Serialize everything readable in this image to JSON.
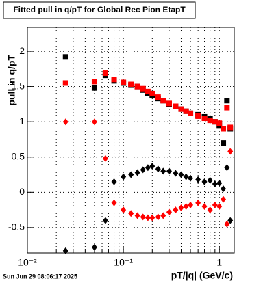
{
  "chart_data": {
    "type": "scatter",
    "title": "Fitted pull in q/pT for Global Rec Pion EtapT",
    "xlabel": "pT/|q| (GeV/c)",
    "ylabel": "pull in q/pT",
    "footer": "Sun Jun 29 08:06:17 2025",
    "xlog": true,
    "grid": true,
    "xlim": [
      0.01,
      1.43
    ],
    "ylim": [
      -0.86,
      2.34
    ],
    "xticks": [
      {
        "value": 0.01,
        "label": "10⁻²"
      },
      {
        "value": 0.1,
        "label": "10⁻¹"
      },
      1
    ],
    "yticks": [
      -0.5,
      0,
      0.5,
      1,
      1.5,
      2
    ],
    "x": [
      0.025,
      0.05,
      0.065,
      0.08,
      0.1,
      0.12,
      0.14,
      0.16,
      0.18,
      0.2,
      0.23,
      0.26,
      0.3,
      0.35,
      0.4,
      0.45,
      0.5,
      0.6,
      0.7,
      0.8,
      0.9,
      1.0,
      1.1,
      1.2,
      1.3
    ],
    "series": [
      {
        "color": "#000000",
        "marker": "square",
        "values": [
          1.92,
          1.48,
          1.66,
          1.58,
          1.55,
          1.52,
          1.5,
          1.45,
          1.4,
          1.37,
          1.33,
          1.3,
          1.25,
          1.22,
          1.18,
          1.15,
          1.12,
          1.1,
          1.07,
          1.05,
          1.0,
          0.95,
          0.7,
          1.3,
          0.9
        ]
      },
      {
        "color": "#ff0000",
        "marker": "square",
        "values": [
          1.55,
          1.57,
          1.69,
          1.6,
          1.56,
          1.53,
          1.5,
          1.47,
          1.43,
          1.4,
          1.35,
          1.3,
          1.26,
          1.22,
          1.18,
          1.15,
          1.12,
          1.08,
          1.05,
          1.02,
          1.0,
          0.98,
          0.9,
          1.2,
          0.92
        ]
      },
      {
        "color": "#000000",
        "marker": "diamond",
        "values": [
          -0.83,
          -0.78,
          -0.4,
          0.15,
          0.22,
          0.25,
          0.28,
          0.32,
          0.35,
          0.37,
          0.33,
          0.3,
          0.3,
          0.27,
          0.25,
          0.22,
          0.2,
          0.18,
          0.15,
          0.17,
          0.12,
          0.13,
          0.05,
          0.35,
          -0.4
        ]
      },
      {
        "color": "#ff0000",
        "marker": "diamond",
        "values": [
          1.0,
          1.0,
          0.48,
          -0.15,
          -0.25,
          -0.3,
          -0.33,
          -0.35,
          -0.36,
          -0.36,
          -0.35,
          -0.33,
          -0.28,
          -0.25,
          -0.22,
          -0.2,
          -0.18,
          -0.15,
          -0.2,
          -0.25,
          -0.18,
          -0.2,
          -0.1,
          -0.45,
          0.58
        ]
      }
    ]
  }
}
